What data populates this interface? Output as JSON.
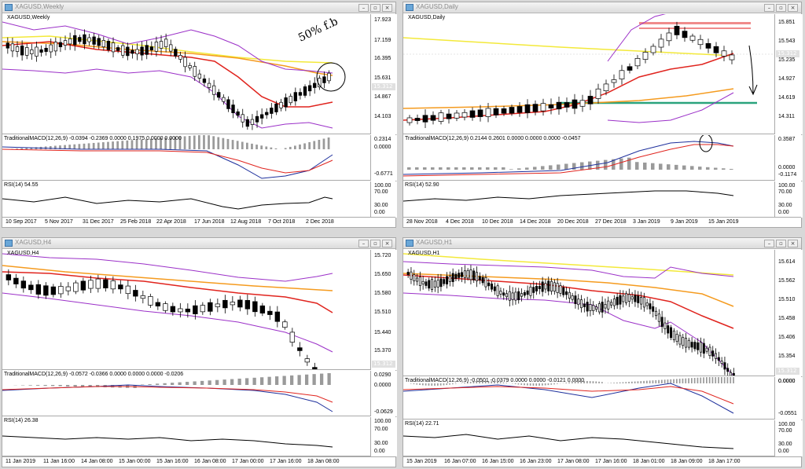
{
  "windows": [
    {
      "title": "XAGUSD,Weekly",
      "symbol": "XAGUSD,Weekly",
      "price_levels": [
        "17.923",
        "17.159",
        "16.395",
        "15.631",
        "15.312",
        "14.867",
        "14.103"
      ],
      "macd_label": "TraditionalMACD(12,26,9) -0.0394 -0.2369 0.0000 0.1975 0.0000 0.0000",
      "macd_levels": [
        "0.2314",
        "0.0000",
        "-0.6771"
      ],
      "rsi_label": "RSI(14) 54.55",
      "rsi_levels": [
        "100.00",
        "70.00",
        "30.00",
        "0.00"
      ],
      "dates": [
        "10 Sep 2017",
        "5 Nov 2017",
        "31 Dec 2017",
        "25 Feb 2018",
        "22 Apr 2018",
        "17 Jun 2018",
        "12 Aug 2018",
        "7 Oct 2018",
        "2 Dec 2018"
      ],
      "annotation": "50% f.b"
    },
    {
      "title": "XAGUSD,Daily",
      "symbol": "XAGUSD,Daily",
      "price_levels": [
        "15.851",
        "15.543",
        "15.312",
        "15.235",
        "14.927",
        "14.619",
        "14.311"
      ],
      "macd_label": "TraditionalMACD(12,26,9) 0.2144 0.2601 0.0000 0.0000 0.0000 -0.0457",
      "macd_levels": [
        "0.3587",
        "0.0000",
        "-0.1174"
      ],
      "rsi_label": "RSI(14) 52.90",
      "rsi_levels": [
        "100.00",
        "70.00",
        "30.00",
        "0.00"
      ],
      "dates": [
        "28 Nov 2018",
        "4 Dec 2018",
        "10 Dec 2018",
        "14 Dec 2018",
        "20 Dec 2018",
        "27 Dec 2018",
        "3 Jan 2019",
        "9 Jan 2019",
        "15 Jan 2019"
      ]
    },
    {
      "title": "XAGUSD,H4",
      "symbol": "XAGUSD,H4",
      "price_levels": [
        "15.720",
        "15.650",
        "15.580",
        "15.510",
        "15.440",
        "15.370",
        "15.312"
      ],
      "macd_label": "TraditionalMACD(12,26,9) -0.0572 -0.0366 0.0000 0.0000 0.0000 -0.0206",
      "macd_levels": [
        "0.0290",
        "0.0000",
        "-0.0629"
      ],
      "rsi_label": "RSI(14) 26.38",
      "rsi_levels": [
        "100.00",
        "70.00",
        "30.00",
        "0.00"
      ],
      "dates": [
        "11 Jan 2019",
        "11 Jan 16:00",
        "14 Jan 08:00",
        "15 Jan 00:00",
        "15 Jan 16:00",
        "16 Jan 08:00",
        "17 Jan 00:00",
        "17 Jan 16:00",
        "18 Jan 08:00"
      ]
    },
    {
      "title": "XAGUSD,H1",
      "symbol": "XAGUSD,H1",
      "price_levels": [
        "15.614",
        "15.562",
        "15.510",
        "15.458",
        "15.406",
        "15.354",
        "15.312"
      ],
      "macd_label": "TraditionalMACD(12,26,9) -0.0501 -0.0379 0.0000 0.0000 -0.0121 0.0000",
      "macd_levels": [
        "0.0000",
        "0.0000",
        "-0.0551"
      ],
      "rsi_label": "RSI(14) 22.71",
      "rsi_levels": [
        "100.00",
        "70.00",
        "30.00",
        "0.00"
      ],
      "dates": [
        "15 Jan 2019",
        "16 Jan 07:00",
        "16 Jan 15:00",
        "16 Jan 23:00",
        "17 Jan 08:00",
        "17 Jan 16:00",
        "18 Jan 01:00",
        "18 Jan 09:00",
        "18 Jan 17:00"
      ]
    }
  ],
  "colors": {
    "ma_red": "#e0241e",
    "ma_orange": "#f59b1f",
    "ma_yellow": "#f3e93a",
    "bands": "#9b30c8",
    "macd_blue": "#1d2f9c",
    "hline_green": "#2aa37d",
    "resistance_pink": "#f08b8b"
  }
}
